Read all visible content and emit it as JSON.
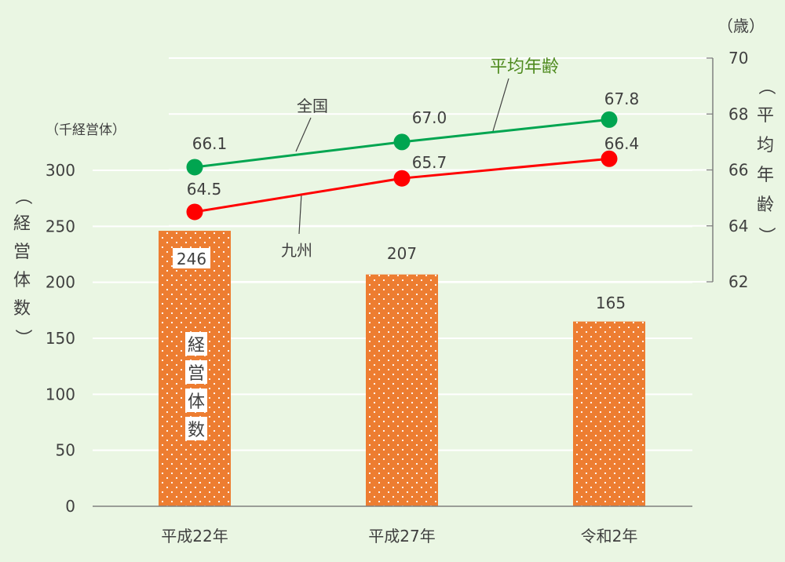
{
  "chart_data": {
    "type": "bar+line",
    "categories": [
      "平成22年",
      "平成27年",
      "令和2年"
    ],
    "bars": {
      "name": "経営体数",
      "values": [
        246,
        207,
        165
      ],
      "data_labels": [
        "246",
        "207",
        "165"
      ],
      "color": "#ed7d31"
    },
    "lines": [
      {
        "name": "全国",
        "values": [
          66.1,
          67.0,
          67.8
        ],
        "data_labels": [
          "66.1",
          "67.0",
          "67.8"
        ],
        "color": "#00a550"
      },
      {
        "name": "九州",
        "values": [
          64.5,
          65.7,
          66.4
        ],
        "data_labels": [
          "64.5",
          "65.7",
          "66.4"
        ],
        "color": "#ff0000"
      }
    ],
    "line_group_label": "平均年齢",
    "y_left": {
      "unit": "（千経営体）",
      "label": "（経営体数）",
      "range": [
        0,
        300
      ],
      "ticks": [
        "0",
        "50",
        "100",
        "150",
        "200",
        "250",
        "300"
      ]
    },
    "y_right": {
      "unit": "（歳）",
      "label": "（平均年齢）",
      "range": [
        62,
        70
      ],
      "ticks": [
        "62",
        "64",
        "66",
        "68",
        "70"
      ]
    },
    "grid": true,
    "colors": {
      "background": "#eaf6e3",
      "grid": "#ffffff",
      "axis": "#808080",
      "text": "#404040",
      "line_group_label": "#4e8a1e"
    }
  }
}
